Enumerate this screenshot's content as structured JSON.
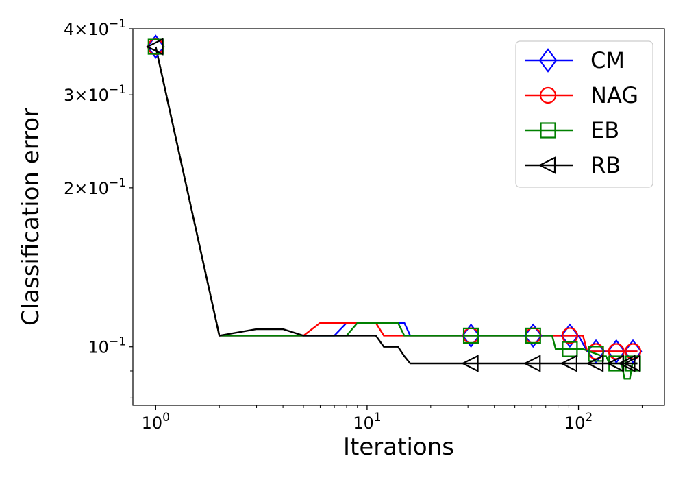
{
  "chart_data": {
    "type": "line",
    "xlabel": "Iterations",
    "ylabel": "Classification error",
    "xscale": "log",
    "yscale": "log",
    "xlim": [
      0.78,
      255
    ],
    "ylim": [
      0.0775,
      0.4
    ],
    "grid": false,
    "legend_position": "top-right",
    "x_ticks": [
      {
        "value": 1,
        "base": "10",
        "exp": "0"
      },
      {
        "value": 10,
        "base": "10",
        "exp": "1"
      },
      {
        "value": 100,
        "base": "10",
        "exp": "2"
      }
    ],
    "y_ticks": [
      {
        "value": 0.4,
        "mant": "4",
        "times": "×",
        "base": "10",
        "exp": "−1"
      },
      {
        "value": 0.3,
        "mant": "3",
        "times": "×",
        "base": "10",
        "exp": "−1"
      },
      {
        "value": 0.2,
        "mant": "2",
        "times": "×",
        "base": "10",
        "exp": "−1"
      },
      {
        "value": 0.1,
        "mant": "",
        "times": "",
        "base": "10",
        "exp": "−1"
      }
    ],
    "series": [
      {
        "name": "CM",
        "color": "#0000ff",
        "marker": "diamond",
        "x": [
          1,
          2,
          7,
          8,
          10,
          11,
          12,
          13,
          14,
          15,
          16,
          20,
          30,
          60,
          90,
          100,
          110,
          120,
          140,
          150,
          160,
          170,
          180,
          190
        ],
        "y": [
          0.37,
          0.105,
          0.105,
          0.111,
          0.111,
          0.111,
          0.111,
          0.111,
          0.111,
          0.111,
          0.105,
          0.105,
          0.105,
          0.105,
          0.105,
          0.105,
          0.098,
          0.098,
          0.098,
          0.098,
          0.098,
          0.098,
          0.098,
          0.098
        ],
        "markers_x": [
          1,
          31,
          61,
          91,
          121,
          151,
          181
        ]
      },
      {
        "name": "NAG",
        "color": "#ff0000",
        "marker": "circle",
        "x": [
          1,
          2,
          5,
          6,
          10,
          11,
          12,
          20,
          30,
          60,
          90,
          100,
          105,
          110,
          120,
          140,
          150,
          160,
          170,
          180,
          190
        ],
        "y": [
          0.37,
          0.105,
          0.105,
          0.111,
          0.111,
          0.111,
          0.105,
          0.105,
          0.105,
          0.105,
          0.105,
          0.105,
          0.105,
          0.098,
          0.098,
          0.098,
          0.098,
          0.098,
          0.098,
          0.098,
          0.098
        ],
        "markers_x": [
          1,
          31,
          61,
          91,
          121,
          151,
          181
        ]
      },
      {
        "name": "EB",
        "color": "#008000",
        "marker": "square",
        "x": [
          1,
          2,
          8,
          9,
          10,
          14,
          15,
          20,
          30,
          60,
          75,
          78,
          80,
          100,
          105,
          130,
          135,
          140,
          145,
          160,
          165,
          175,
          180,
          190
        ],
        "y": [
          0.37,
          0.105,
          0.105,
          0.111,
          0.111,
          0.111,
          0.105,
          0.105,
          0.105,
          0.105,
          0.105,
          0.099,
          0.099,
          0.099,
          0.099,
          0.096,
          0.096,
          0.093,
          0.093,
          0.093,
          0.087,
          0.087,
          0.093,
          0.093
        ],
        "markers_x": [
          1,
          31,
          61,
          91,
          121,
          151,
          181
        ]
      },
      {
        "name": "RB",
        "color": "#000000",
        "marker": "triangle-left",
        "x": [
          1,
          2,
          3,
          4,
          5,
          6,
          7,
          8,
          9,
          10,
          11,
          12,
          13,
          14,
          15,
          16,
          20,
          30,
          60,
          90,
          120,
          150,
          170,
          190
        ],
        "y": [
          0.37,
          0.105,
          0.108,
          0.108,
          0.105,
          0.105,
          0.105,
          0.105,
          0.105,
          0.105,
          0.105,
          0.1,
          0.1,
          0.1,
          0.096,
          0.093,
          0.093,
          0.093,
          0.093,
          0.093,
          0.093,
          0.093,
          0.093,
          0.093
        ],
        "markers_x": [
          1,
          31,
          61,
          91,
          121,
          151,
          171,
          181
        ]
      }
    ]
  }
}
